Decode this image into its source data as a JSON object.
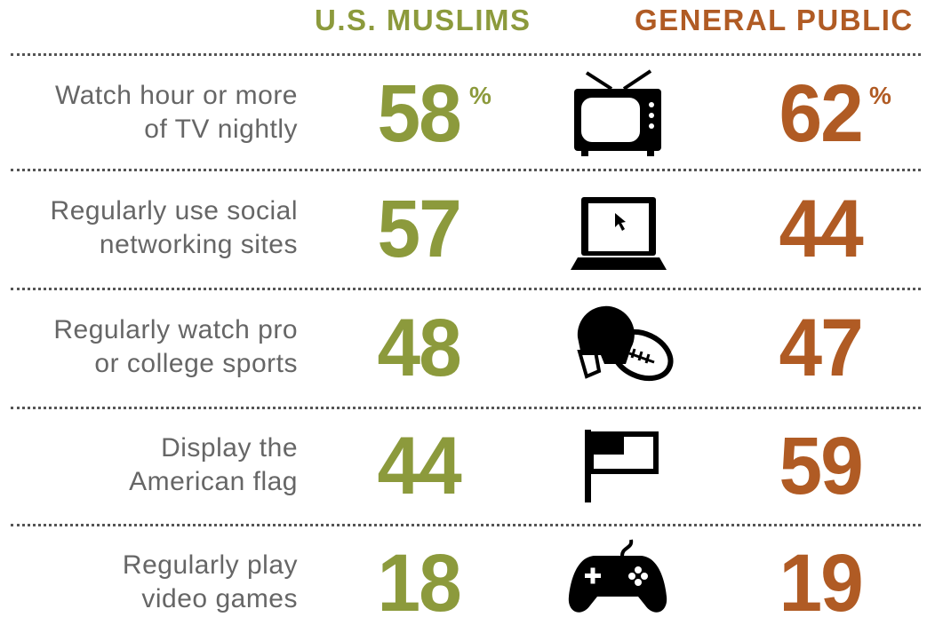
{
  "header": {
    "muslims": "U.S. MUSLIMS",
    "public": "GENERAL PUBLIC"
  },
  "rows": [
    {
      "label": [
        "Watch hour or more",
        "of TV nightly"
      ],
      "muslims": 58,
      "public": 62,
      "unit": "%"
    },
    {
      "label": [
        "Regularly use social",
        "networking sites"
      ],
      "muslims": 57,
      "public": 44
    },
    {
      "label": [
        "Regularly watch pro",
        "or college sports"
      ],
      "muslims": 48,
      "public": 47
    },
    {
      "label": [
        "Display the",
        "American flag"
      ],
      "muslims": 44,
      "public": 59
    },
    {
      "label": [
        "Regularly play",
        "video games"
      ],
      "muslims": 18,
      "public": 19
    }
  ]
}
